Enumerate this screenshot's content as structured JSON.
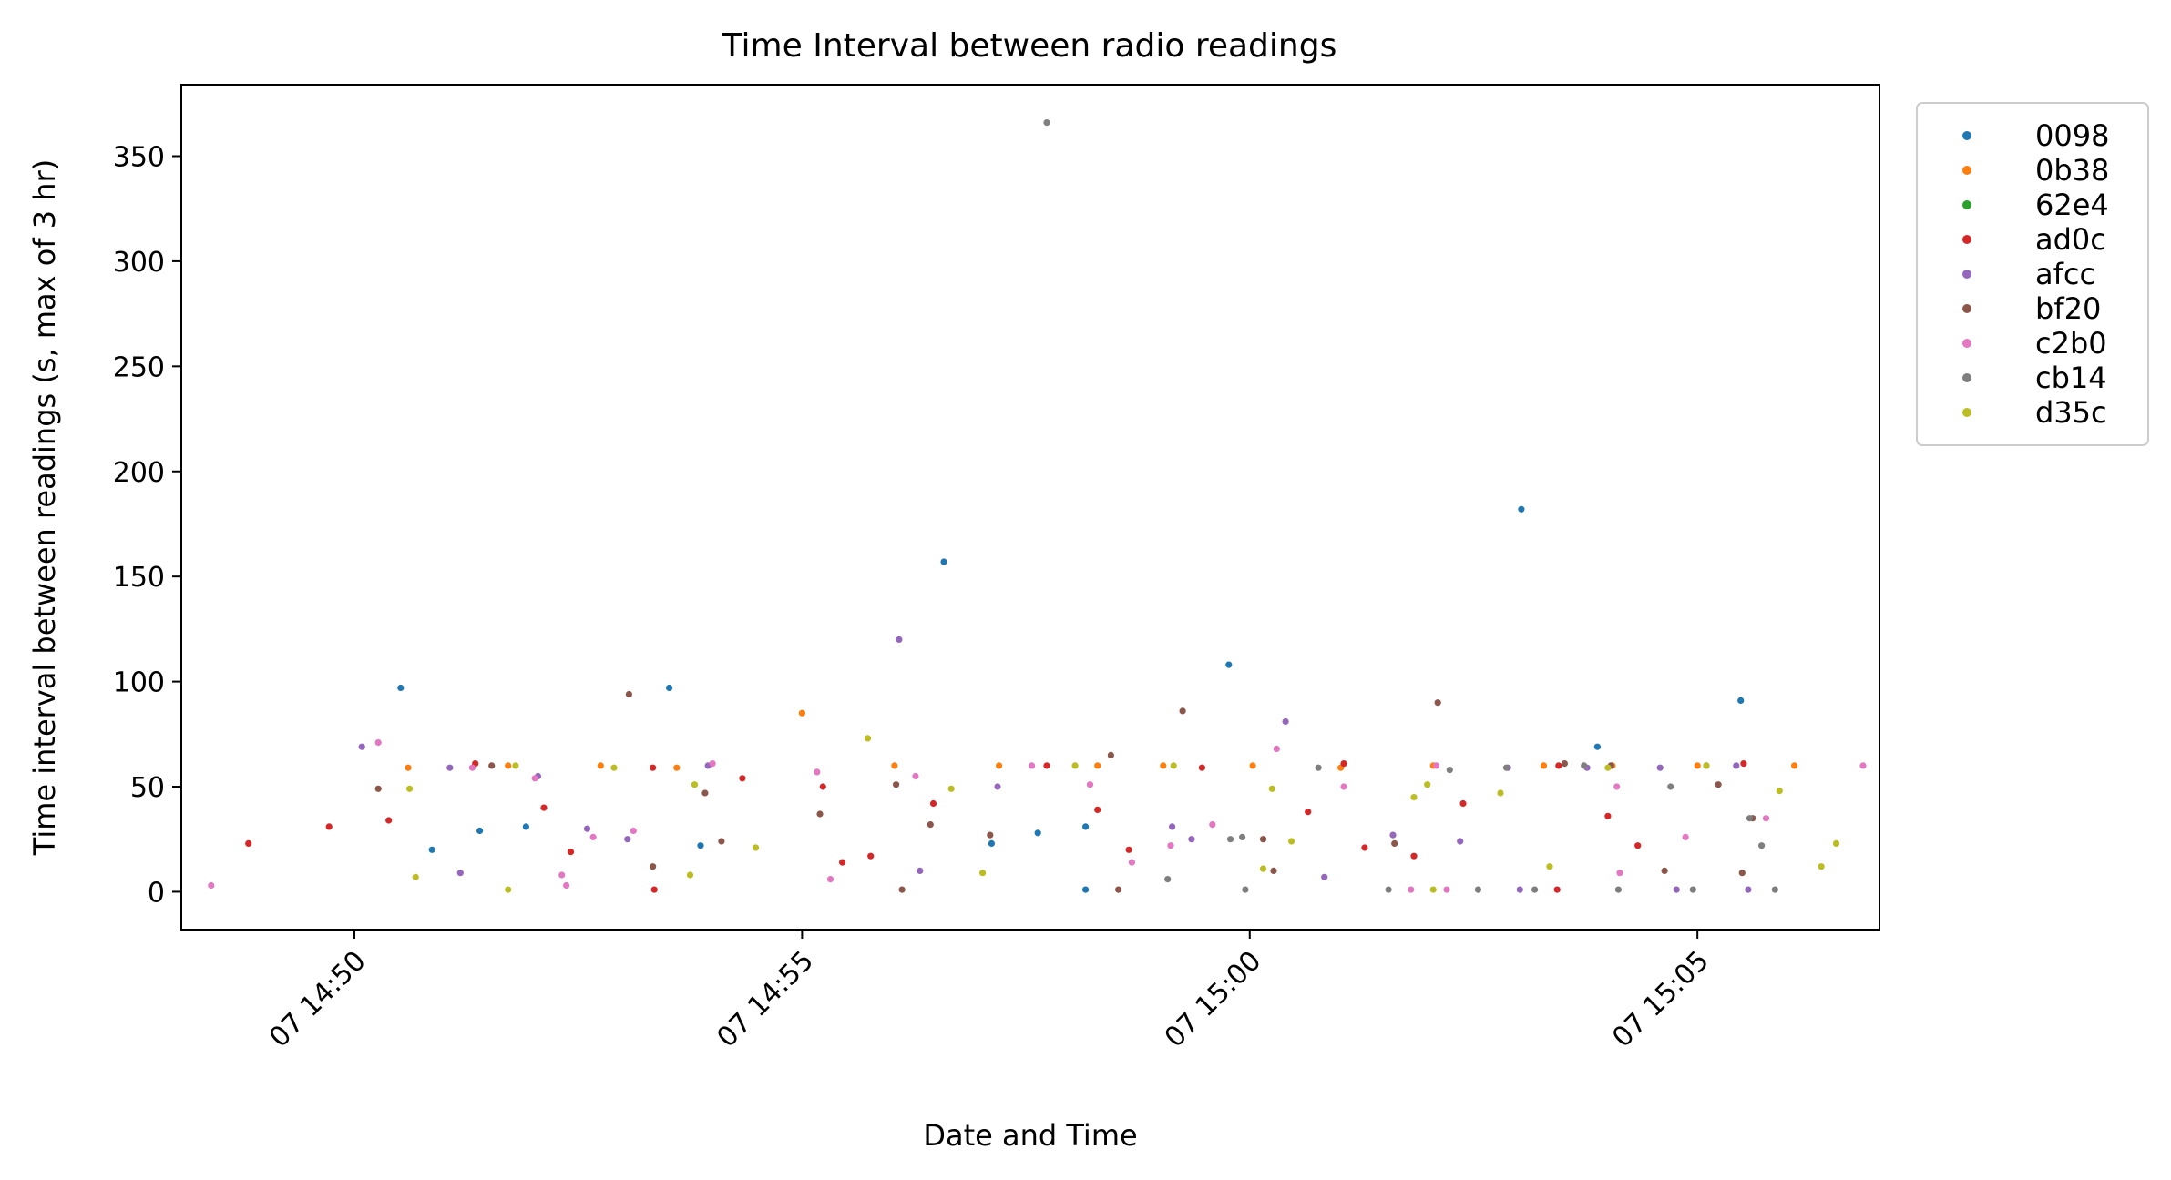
{
  "chart_data": {
    "type": "scatter",
    "title": "Time Interval between radio readings",
    "xlabel": "Date and Time",
    "ylabel": "Time interval between readings (s, max of 3 hr)",
    "x_unit": "time of day (HH:MM:SS) on day 07",
    "x_range": [
      "14:48:04",
      "15:07:02"
    ],
    "ylim": [
      -18,
      384
    ],
    "x_ticks": [
      {
        "value": "14:50:00",
        "label": "07 14:50"
      },
      {
        "value": "14:55:00",
        "label": "07 14:55"
      },
      {
        "value": "15:00:00",
        "label": "07 15:00"
      },
      {
        "value": "15:05:00",
        "label": "07 15:05"
      }
    ],
    "y_ticks": [
      0,
      50,
      100,
      150,
      200,
      250,
      300,
      350
    ],
    "grid": false,
    "legend_position": "outside-right",
    "series": [
      {
        "name": "0098",
        "color": "#1f77b4",
        "points": [
          [
            "14:50:31",
            97
          ],
          [
            "14:50:52",
            20
          ],
          [
            "14:51:24",
            29
          ],
          [
            "14:51:55",
            31
          ],
          [
            "14:53:31",
            97
          ],
          [
            "14:53:52",
            22
          ],
          [
            "14:56:35",
            157
          ],
          [
            "14:57:07",
            23
          ],
          [
            "14:57:38",
            28
          ],
          [
            "14:58:10",
            1
          ],
          [
            "14:58:10",
            31
          ],
          [
            "14:59:46",
            108
          ],
          [
            "15:03:02",
            182
          ],
          [
            "15:03:53",
            69
          ],
          [
            "15:05:29",
            91
          ]
        ]
      },
      {
        "name": "0b38",
        "color": "#ff7f0e",
        "points": [
          [
            "14:50:36",
            59
          ],
          [
            "14:51:43",
            60
          ],
          [
            "14:52:45",
            60
          ],
          [
            "14:53:36",
            59
          ],
          [
            "14:55:00",
            85
          ],
          [
            "14:56:02",
            60
          ],
          [
            "14:57:12",
            60
          ],
          [
            "14:58:18",
            60
          ],
          [
            "14:59:02",
            60
          ],
          [
            "15:00:02",
            60
          ],
          [
            "15:01:01",
            59
          ],
          [
            "15:02:03",
            60
          ],
          [
            "15:03:17",
            60
          ],
          [
            "15:04:03",
            60
          ],
          [
            "15:05:00",
            60
          ],
          [
            "15:06:05",
            60
          ]
        ]
      },
      {
        "name": "62e4",
        "color": "#2ca02c",
        "points": []
      },
      {
        "name": "ad0c",
        "color": "#d62728",
        "points": [
          [
            "14:48:49",
            23
          ],
          [
            "14:49:43",
            31
          ],
          [
            "14:50:23",
            34
          ],
          [
            "14:51:21",
            61
          ],
          [
            "14:52:07",
            40
          ],
          [
            "14:52:25",
            19
          ],
          [
            "14:53:20",
            59
          ],
          [
            "14:53:21",
            1
          ],
          [
            "14:54:20",
            54
          ],
          [
            "14:55:14",
            50
          ],
          [
            "14:55:27",
            14
          ],
          [
            "14:55:46",
            17
          ],
          [
            "14:56:28",
            42
          ],
          [
            "14:57:44",
            60
          ],
          [
            "14:58:18",
            39
          ],
          [
            "14:58:39",
            20
          ],
          [
            "14:59:28",
            59
          ],
          [
            "15:00:39",
            38
          ],
          [
            "15:01:03",
            61
          ],
          [
            "15:01:17",
            21
          ],
          [
            "15:01:50",
            17
          ],
          [
            "15:02:23",
            42
          ],
          [
            "15:03:26",
            1
          ],
          [
            "15:03:27",
            60
          ],
          [
            "15:04:00",
            36
          ],
          [
            "15:04:20",
            22
          ],
          [
            "15:05:31",
            61
          ]
        ]
      },
      {
        "name": "afcc",
        "color": "#9467bd",
        "points": [
          [
            "14:50:05",
            69
          ],
          [
            "14:51:04",
            59
          ],
          [
            "14:51:11",
            9
          ],
          [
            "14:52:03",
            55
          ],
          [
            "14:52:36",
            30
          ],
          [
            "14:53:03",
            25
          ],
          [
            "14:53:57",
            60
          ],
          [
            "14:56:05",
            120
          ],
          [
            "14:56:19",
            10
          ],
          [
            "14:57:11",
            50
          ],
          [
            "14:59:08",
            31
          ],
          [
            "14:59:21",
            25
          ],
          [
            "15:00:24",
            81
          ],
          [
            "15:00:50",
            7
          ],
          [
            "15:01:36",
            27
          ],
          [
            "15:02:21",
            24
          ],
          [
            "15:02:53",
            59
          ],
          [
            "15:03:01",
            1
          ],
          [
            "15:03:46",
            59
          ],
          [
            "15:04:35",
            59
          ],
          [
            "15:04:46",
            1
          ],
          [
            "15:05:26",
            60
          ],
          [
            "15:05:34",
            1
          ]
        ]
      },
      {
        "name": "bf20",
        "color": "#8c564b",
        "points": [
          [
            "14:50:16",
            49
          ],
          [
            "14:51:32",
            60
          ],
          [
            "14:53:04",
            94
          ],
          [
            "14:53:20",
            12
          ],
          [
            "14:53:55",
            47
          ],
          [
            "14:54:06",
            24
          ],
          [
            "14:55:12",
            37
          ],
          [
            "14:56:03",
            51
          ],
          [
            "14:56:07",
            1
          ],
          [
            "14:56:26",
            32
          ],
          [
            "14:57:06",
            27
          ],
          [
            "14:58:27",
            65
          ],
          [
            "14:58:32",
            1
          ],
          [
            "14:59:15",
            86
          ],
          [
            "15:00:09",
            25
          ],
          [
            "15:00:16",
            10
          ],
          [
            "15:01:37",
            23
          ],
          [
            "15:02:06",
            90
          ],
          [
            "15:03:31",
            61
          ],
          [
            "15:04:02",
            60
          ],
          [
            "15:04:38",
            10
          ],
          [
            "15:05:14",
            51
          ],
          [
            "15:05:30",
            9
          ],
          [
            "15:05:37",
            35
          ]
        ]
      },
      {
        "name": "c2b0",
        "color": "#e377c2",
        "points": [
          [
            "14:48:24",
            3
          ],
          [
            "14:50:16",
            71
          ],
          [
            "14:51:19",
            59
          ],
          [
            "14:52:01",
            54
          ],
          [
            "14:52:19",
            8
          ],
          [
            "14:52:22",
            3
          ],
          [
            "14:52:40",
            26
          ],
          [
            "14:53:07",
            29
          ],
          [
            "14:54:00",
            61
          ],
          [
            "14:55:10",
            57
          ],
          [
            "14:55:19",
            6
          ],
          [
            "14:56:16",
            55
          ],
          [
            "14:57:34",
            60
          ],
          [
            "14:58:13",
            51
          ],
          [
            "14:58:41",
            14
          ],
          [
            "14:59:07",
            22
          ],
          [
            "14:59:35",
            32
          ],
          [
            "15:00:18",
            68
          ],
          [
            "15:01:03",
            50
          ],
          [
            "15:01:48",
            1
          ],
          [
            "15:02:05",
            60
          ],
          [
            "15:02:12",
            1
          ],
          [
            "15:04:06",
            50
          ],
          [
            "15:04:08",
            9
          ],
          [
            "15:04:52",
            26
          ],
          [
            "15:05:46",
            35
          ],
          [
            "15:06:51",
            60
          ]
        ]
      },
      {
        "name": "cb14",
        "color": "#7f7f7f",
        "points": [
          [
            "14:57:44",
            366
          ],
          [
            "14:59:05",
            6
          ],
          [
            "14:59:47",
            25
          ],
          [
            "14:59:55",
            26
          ],
          [
            "14:59:57",
            1
          ],
          [
            "15:00:46",
            59
          ],
          [
            "15:01:33",
            1
          ],
          [
            "15:02:14",
            58
          ],
          [
            "15:02:33",
            1
          ],
          [
            "15:02:52",
            59
          ],
          [
            "15:03:11",
            1
          ],
          [
            "15:03:44",
            60
          ],
          [
            "15:04:07",
            1
          ],
          [
            "15:04:42",
            50
          ],
          [
            "15:04:57",
            1
          ],
          [
            "15:05:06",
            60
          ],
          [
            "15:05:35",
            35
          ],
          [
            "15:05:43",
            22
          ],
          [
            "15:05:52",
            1
          ]
        ]
      },
      {
        "name": "d35c",
        "color": "#bcbd22",
        "points": [
          [
            "14:50:41",
            7
          ],
          [
            "14:50:37",
            49
          ],
          [
            "14:51:48",
            60
          ],
          [
            "14:51:43",
            1
          ],
          [
            "14:52:54",
            59
          ],
          [
            "14:53:48",
            51
          ],
          [
            "14:53:45",
            8
          ],
          [
            "14:54:29",
            21
          ],
          [
            "14:55:44",
            73
          ],
          [
            "14:56:40",
            49
          ],
          [
            "14:57:01",
            9
          ],
          [
            "14:58:03",
            60
          ],
          [
            "14:59:09",
            60
          ],
          [
            "15:00:15",
            49
          ],
          [
            "15:00:09",
            11
          ],
          [
            "15:00:28",
            24
          ],
          [
            "15:01:50",
            45
          ],
          [
            "15:01:59",
            51
          ],
          [
            "15:02:03",
            1
          ],
          [
            "15:02:48",
            47
          ],
          [
            "15:03:21",
            12
          ],
          [
            "15:04:00",
            59
          ],
          [
            "15:05:06",
            60
          ],
          [
            "15:05:55",
            48
          ],
          [
            "15:06:23",
            12
          ],
          [
            "15:06:33",
            23
          ]
        ]
      }
    ]
  }
}
